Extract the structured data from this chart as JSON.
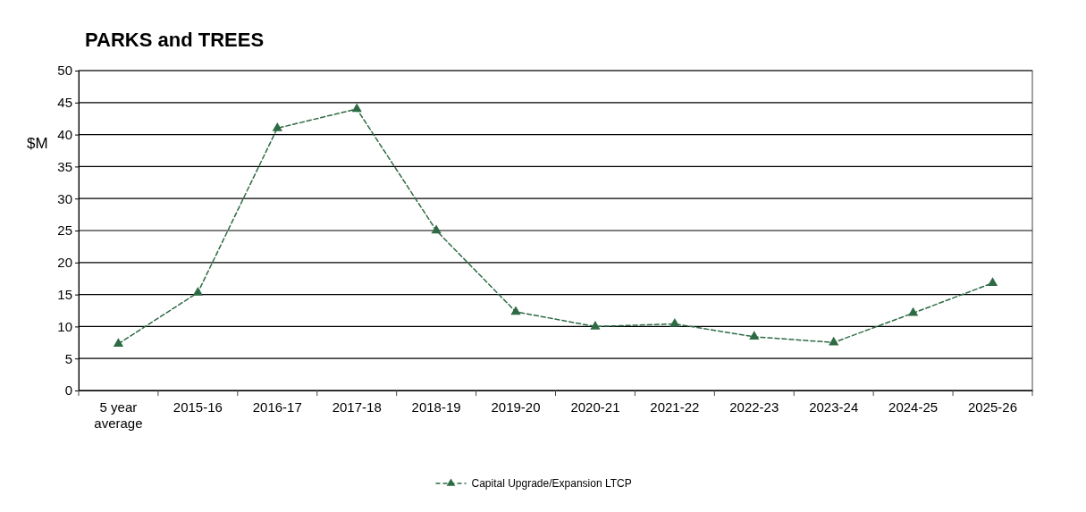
{
  "chart_data": {
    "type": "line",
    "title": "PARKS and TREES",
    "ylabel": "$M",
    "categories": [
      "5 year average",
      "2015-16",
      "2016-17",
      "2017-18",
      "2018-19",
      "2019-20",
      "2020-21",
      "2021-22",
      "2022-23",
      "2023-24",
      "2024-25",
      "2025-26"
    ],
    "series": [
      {
        "name": "Capital Upgrade/Expansion LTCP",
        "color": "#2e6b45",
        "values": [
          7.3,
          15.3,
          41,
          44,
          25,
          12.3,
          10,
          10.4,
          8.4,
          7.5,
          12.1,
          16.8
        ]
      }
    ],
    "ylim": [
      0,
      50
    ],
    "yticks": [
      0,
      5,
      10,
      15,
      20,
      25,
      30,
      35,
      40,
      45,
      50
    ],
    "grid": "y",
    "legend": "bottom",
    "marker": "triangle",
    "line_style": "dashed"
  }
}
